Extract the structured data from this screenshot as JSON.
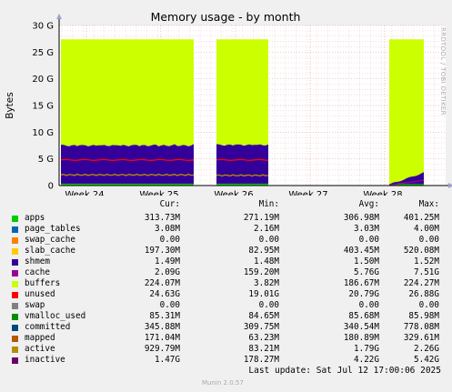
{
  "chart_data": {
    "type": "area",
    "title": "Memory usage - by month",
    "ylabel": "Bytes",
    "side_label": "RRDTOOL / TOBI OETIKER",
    "y_unit": "G",
    "ylim": [
      0,
      30
    ],
    "y_ticks": [
      {
        "value": 0,
        "label": "0"
      },
      {
        "value": 5,
        "label": "5 G"
      },
      {
        "value": 10,
        "label": "10 G"
      },
      {
        "value": 15,
        "label": "15 G"
      },
      {
        "value": 20,
        "label": "20 G"
      },
      {
        "value": 25,
        "label": "25 G"
      },
      {
        "value": 30,
        "label": "30 G"
      }
    ],
    "x_ticks": [
      "Week 24",
      "Week 25",
      "Week 26",
      "Week 27",
      "Week 28"
    ],
    "grid": true,
    "segments": [
      {
        "from": "Week 24 start",
        "to": "Week 25 end",
        "cache": 7.5,
        "unused": 19.9,
        "swap": 4.8,
        "active": 2.0
      },
      {
        "from": "Week 26 start",
        "to": "Week 26 end",
        "cache": 7.6,
        "unused": 19.8,
        "swap": 4.8,
        "active": 1.9
      },
      {
        "from": "Week 28 start",
        "to": "Week 28 end",
        "cache_ramp": [
          0.2,
          2.4
        ],
        "unused": 27.4
      }
    ],
    "legend_headers": [
      "Cur:",
      "Min:",
      "Avg:",
      "Max:"
    ],
    "legend": [
      {
        "name": "apps",
        "color": "#00cc00",
        "cur": "313.73M",
        "min": "271.19M",
        "avg": "306.98M",
        "max": "401.25M"
      },
      {
        "name": "page_tables",
        "color": "#0066b3",
        "cur": "3.08M",
        "min": "2.16M",
        "avg": "3.03M",
        "max": "4.00M"
      },
      {
        "name": "swap_cache",
        "color": "#ff8000",
        "cur": "0.00",
        "min": "0.00",
        "avg": "0.00",
        "max": "0.00"
      },
      {
        "name": "slab_cache",
        "color": "#ffcc00",
        "cur": "197.30M",
        "min": "82.95M",
        "avg": "403.45M",
        "max": "520.08M"
      },
      {
        "name": "shmem",
        "color": "#330099",
        "cur": "1.49M",
        "min": "1.48M",
        "avg": "1.50M",
        "max": "1.52M"
      },
      {
        "name": "cache",
        "color": "#990099",
        "cur": "2.09G",
        "min": "159.20M",
        "avg": "5.76G",
        "max": "7.51G"
      },
      {
        "name": "buffers",
        "color": "#ccff00",
        "cur": "224.07M",
        "min": "3.82M",
        "avg": "186.67M",
        "max": "224.27M"
      },
      {
        "name": "unused",
        "color": "#ff0000",
        "cur": "24.63G",
        "min": "19.01G",
        "avg": "20.79G",
        "max": "26.88G"
      },
      {
        "name": "swap",
        "color": "#808080",
        "cur": "0.00",
        "min": "0.00",
        "avg": "0.00",
        "max": "0.00"
      },
      {
        "name": "vmalloc_used",
        "color": "#008f00",
        "cur": "85.31M",
        "min": "84.65M",
        "avg": "85.68M",
        "max": "85.98M"
      },
      {
        "name": "committed",
        "color": "#00487d",
        "cur": "345.88M",
        "min": "309.75M",
        "avg": "340.54M",
        "max": "778.08M"
      },
      {
        "name": "mapped",
        "color": "#b35a00",
        "cur": "171.04M",
        "min": "63.23M",
        "avg": "180.89M",
        "max": "329.61M"
      },
      {
        "name": "active",
        "color": "#b38f00",
        "cur": "929.79M",
        "min": "83.21M",
        "avg": "1.79G",
        "max": "2.26G"
      },
      {
        "name": "inactive",
        "color": "#6b006b",
        "cur": "1.47G",
        "min": "178.27M",
        "avg": "4.22G",
        "max": "5.42G"
      }
    ],
    "area_colors": {
      "unused": "#ccff00",
      "cache": "#330099",
      "swap": "#ff0000",
      "active": "#b38f00",
      "apps": "#00cc00",
      "buffers": "#990099"
    }
  },
  "footer": {
    "last_update": "Last update: Sat Jul 12 17:00:06 2025",
    "munin": "Munin 2.0.57"
  }
}
